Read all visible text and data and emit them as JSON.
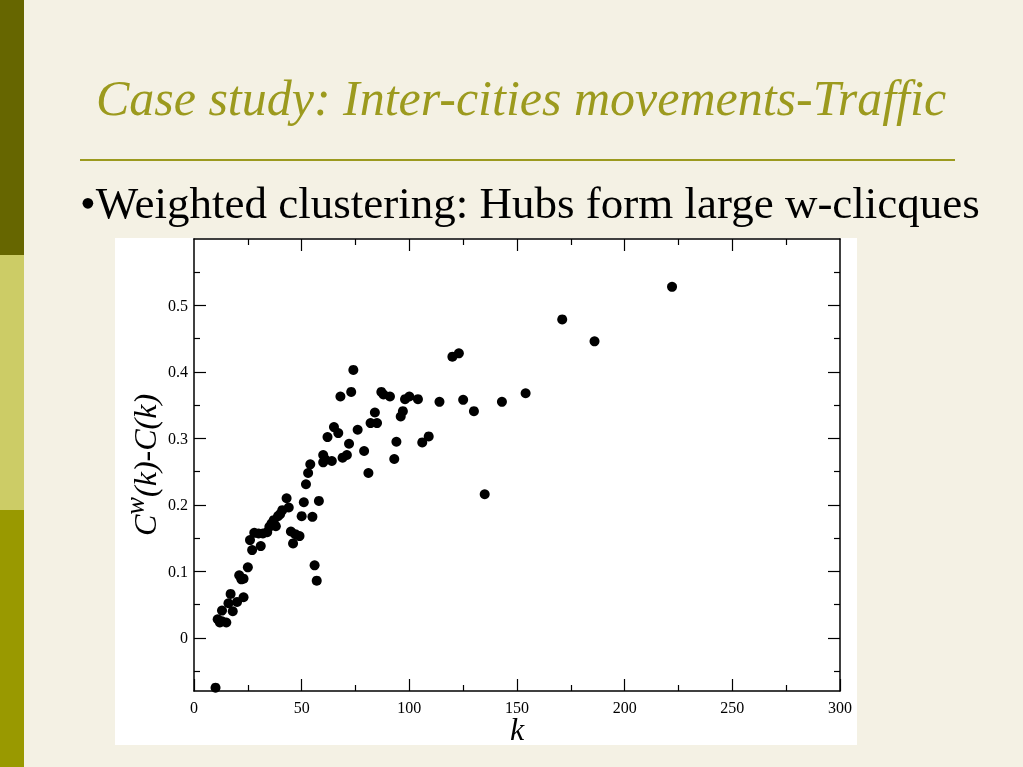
{
  "chart_data": {
    "type": "scatter",
    "title": "Case study: Inter-cities movements-Traffic",
    "subtitle": "•Weighted clustering: Hubs form large w-clicques",
    "xlabel": "k",
    "ylabel": "C$^{w}$(k)-C(k)",
    "color": "#000000",
    "marker": "circle",
    "grid": false,
    "xlim": [
      0,
      300
    ],
    "xticks": [
      0,
      {
        "value": 25,
        "label": null
      },
      50,
      {
        "value": 75,
        "label": null
      },
      100,
      {
        "value": 125,
        "label": null
      },
      150,
      {
        "value": 175,
        "label": null
      },
      200,
      {
        "value": 225,
        "label": null
      },
      250,
      {
        "value": 275,
        "label": null
      },
      300
    ],
    "ylim": [
      -0.08,
      0.6
    ],
    "yticks": [
      {
        "value": -0.05,
        "label": null
      },
      0,
      {
        "value": 0.05,
        "label": null
      },
      0.1,
      {
        "value": 0.15,
        "label": null
      },
      0.2,
      {
        "value": 0.25,
        "label": null
      },
      0.3,
      {
        "value": 0.35,
        "label": null
      },
      0.4,
      {
        "value": 0.45,
        "label": null
      },
      0.5,
      {
        "value": 0.55,
        "label": null
      }
    ],
    "x": [
      10,
      11,
      12,
      13,
      13,
      15,
      16,
      17,
      18,
      20,
      21,
      22,
      23,
      23,
      25,
      26,
      27,
      28,
      30,
      31,
      32,
      34,
      35,
      36,
      37,
      38,
      39,
      40,
      41,
      43,
      44,
      45,
      46,
      47,
      49,
      50,
      51,
      52,
      53,
      54,
      55,
      56,
      57,
      58,
      60,
      60,
      61,
      62,
      64,
      65,
      67,
      68,
      69,
      71,
      72,
      73,
      74,
      76,
      79,
      81,
      82,
      84,
      85,
      87,
      88,
      91,
      93,
      94,
      96,
      97,
      98,
      100,
      104,
      106,
      109,
      114,
      120,
      123,
      125,
      130,
      135,
      143,
      154,
      171,
      186,
      222
    ],
    "values": [
      -0.075,
      0.028,
      0.023,
      0.025,
      0.041,
      0.023,
      0.052,
      0.066,
      0.04,
      0.054,
      0.094,
      0.088,
      0.089,
      0.061,
      0.106,
      0.147,
      0.132,
      0.158,
      0.157,
      0.138,
      0.157,
      0.159,
      0.167,
      0.172,
      0.177,
      0.168,
      0.183,
      0.186,
      0.192,
      0.21,
      0.196,
      0.16,
      0.142,
      0.156,
      0.153,
      0.183,
      0.204,
      0.231,
      0.248,
      0.261,
      0.182,
      0.109,
      0.086,
      0.206,
      0.275,
      0.264,
      0.268,
      0.302,
      0.266,
      0.317,
      0.308,
      0.363,
      0.271,
      0.275,
      0.292,
      0.37,
      0.403,
      0.313,
      0.281,
      0.248,
      0.323,
      0.339,
      0.323,
      0.37,
      0.366,
      0.363,
      0.269,
      0.295,
      0.333,
      0.341,
      0.359,
      0.363,
      0.359,
      0.294,
      0.303,
      0.355,
      0.423,
      0.428,
      0.358,
      0.341,
      0.216,
      0.355,
      0.368,
      0.479,
      0.446,
      0.528
    ]
  }
}
